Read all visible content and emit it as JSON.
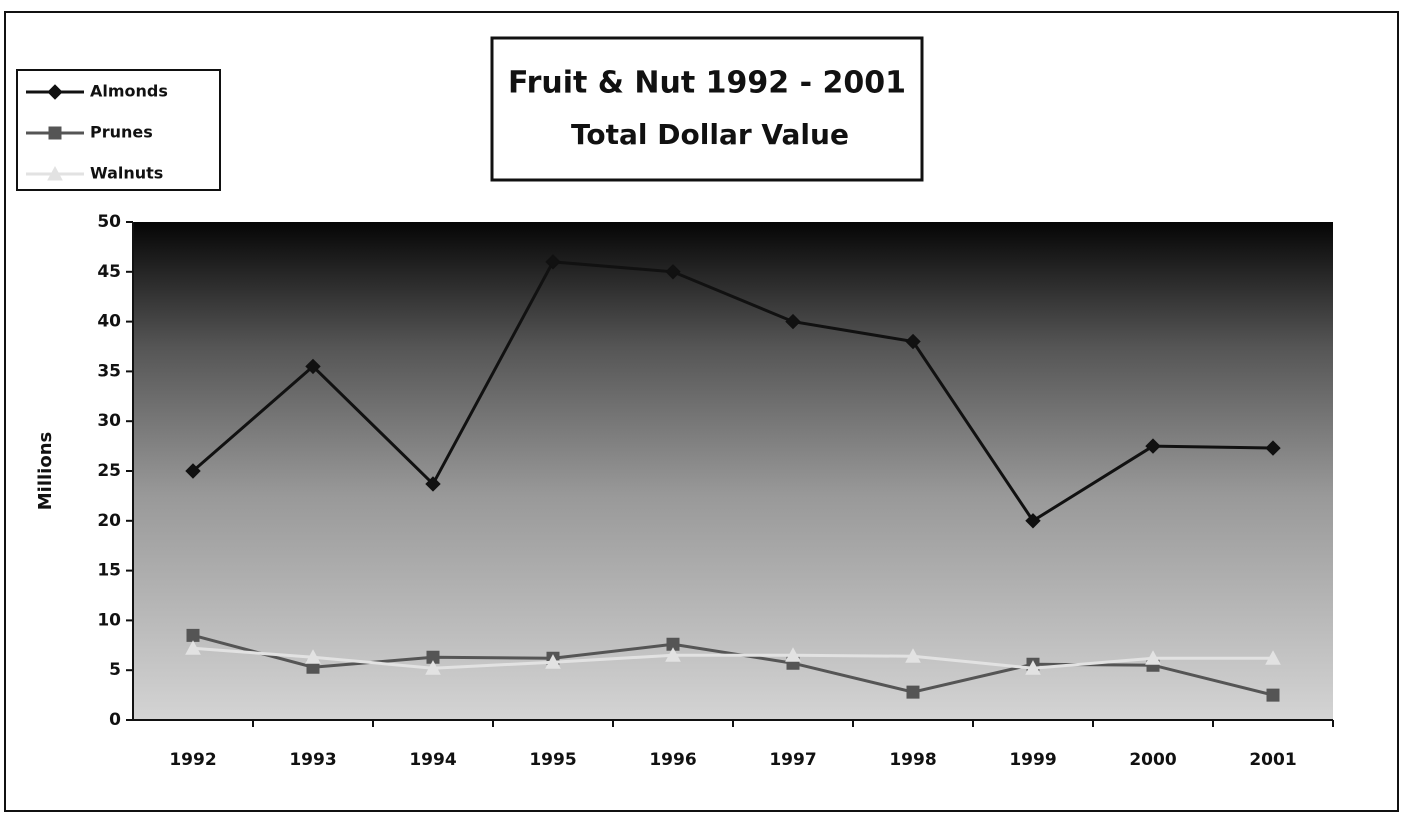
{
  "chart_data": {
    "type": "line",
    "title": "Fruit & Nut 1992 - 2001",
    "subtitle": "Total Dollar Value",
    "y_label": "Millions",
    "categories": [
      "1992",
      "1993",
      "1994",
      "1995",
      "1996",
      "1997",
      "1998",
      "1999",
      "2000",
      "2001"
    ],
    "series": [
      {
        "name": "Almonds",
        "color": "#111111",
        "marker": "diamond",
        "values": [
          25,
          35.5,
          23.7,
          46,
          45,
          40,
          38,
          20,
          27.5,
          27.3
        ]
      },
      {
        "name": "Prunes",
        "color": "#555555",
        "marker": "square",
        "values": [
          8.5,
          5.3,
          6.3,
          6.2,
          7.6,
          5.7,
          2.8,
          5.6,
          5.5,
          2.5
        ]
      },
      {
        "name": "Walnuts",
        "color": "#e2e2e2",
        "marker": "triangle",
        "values": [
          7.2,
          6.3,
          5.2,
          5.8,
          6.5,
          6.5,
          6.4,
          5.2,
          6.2,
          6.2
        ]
      }
    ],
    "ylim": [
      0,
      50
    ],
    "yticks": [
      0,
      5,
      10,
      15,
      20,
      25,
      30,
      35,
      40,
      45,
      50
    ],
    "legend": "top-left"
  }
}
